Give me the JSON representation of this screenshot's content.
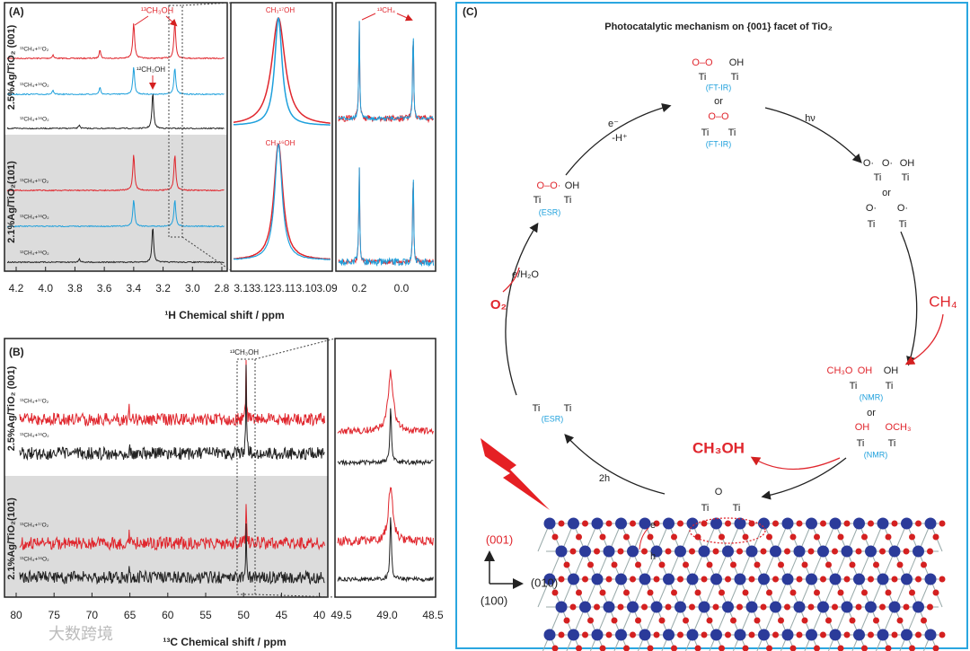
{
  "panel_a": {
    "label": "(A)",
    "x_label": "¹H Chemical shift / ppm",
    "main_ticks": [
      "4.2",
      "4.0",
      "3.8",
      "3.6",
      "3.4",
      "3.2",
      "3.0",
      "2.8"
    ],
    "zoom1_ticks": [
      "3.13",
      "3.12",
      "3.11",
      "3.10",
      "3.09"
    ],
    "zoom2_ticks": [
      "0.2",
      "0.0"
    ],
    "group_labels": [
      "2.5%Ag/TiO₂ (001)",
      "2.1%Ag/TiO₂(101)"
    ],
    "trace_labels": [
      "¹³CH₄+¹⁷O₂",
      "¹³CH₄+¹⁶O₂",
      "¹²CH₄+¹⁶O₂",
      "¹³CH₄+¹⁷O₂",
      "¹³CH₄+¹⁶O₂",
      "¹²CH₄+¹⁶O₂"
    ],
    "annotations": {
      "c13_methanol": "¹³CH₃OH",
      "c12_methanol": "¹²CH₃OH",
      "zoom1_top": "CH₃¹⁷OH",
      "zoom1_bottom": "CH₃¹⁶OH",
      "methane": "¹³CH₄"
    }
  },
  "panel_b": {
    "label": "(B)",
    "x_label": "¹³C Chemical shift / ppm",
    "main_ticks": [
      "80",
      "75",
      "70",
      "65",
      "60",
      "55",
      "50",
      "45",
      "40"
    ],
    "zoom_ticks": [
      "49.5",
      "49.0",
      "48.5"
    ],
    "group_labels": [
      "2.5%Ag/TiO₂ (001)",
      "2.1%Ag/TiO₂(101)"
    ],
    "trace_labels": [
      "¹³CH₄+¹⁷O₂",
      "¹³CH₄+¹⁶O₂",
      "¹³CH₄+¹⁷O₂",
      "¹³CH₄+¹⁶O₂"
    ],
    "annotation": "¹³CH₃OH"
  },
  "panel_c": {
    "label": "(C)",
    "title": "Photocatalytic mechanism on {001} facet of TiO₂",
    "labels": {
      "oo": "O–O",
      "oh": "OH",
      "ti": "Ti",
      "ftir": "(FT-IR)",
      "or": "or",
      "esr": "(ESR)",
      "nmr": "(NMR)",
      "o_rad": "O·",
      "ch3o": "CH₃O",
      "och3": "OCH₃",
      "o": "O",
      "e_minus": "e⁻",
      "minus_h": "-H⁺",
      "hv": "hν",
      "ch4": "CH₄",
      "ch3oh": "CH₃OH",
      "two_h": "2h",
      "e_h2o": "e/H₂O",
      "o2": "O₂",
      "oo_rad": "O–O·",
      "facet": "(001)",
      "dir_010": "(010)",
      "dir_100": "(100)",
      "e": "e",
      "h": "h"
    }
  },
  "watermark": "大数跨境"
}
